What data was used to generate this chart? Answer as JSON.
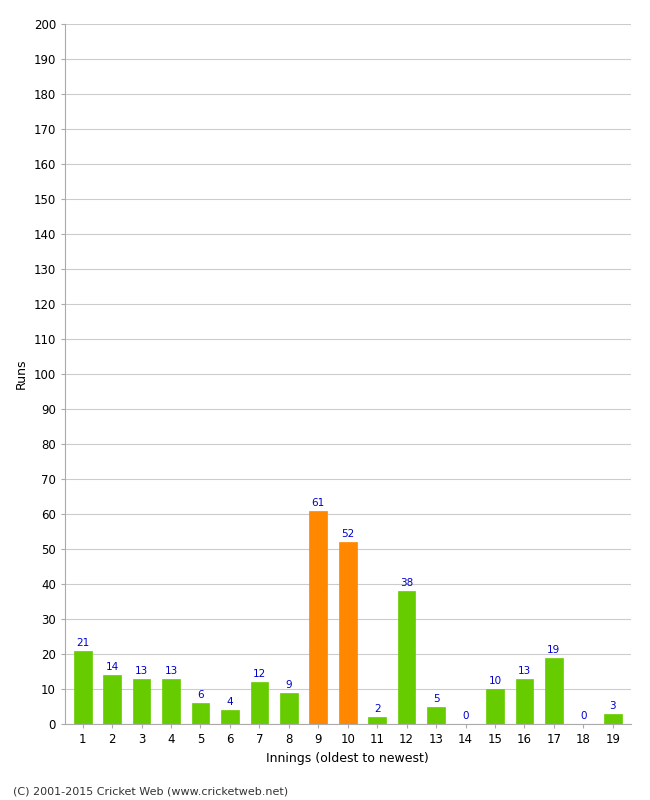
{
  "innings": [
    1,
    2,
    3,
    4,
    5,
    6,
    7,
    8,
    9,
    10,
    11,
    12,
    13,
    14,
    15,
    16,
    17,
    18,
    19
  ],
  "values": [
    21,
    14,
    13,
    13,
    6,
    4,
    12,
    9,
    61,
    52,
    2,
    38,
    5,
    0,
    10,
    13,
    19,
    0,
    3
  ],
  "colors": [
    "#66cc00",
    "#66cc00",
    "#66cc00",
    "#66cc00",
    "#66cc00",
    "#66cc00",
    "#66cc00",
    "#66cc00",
    "#ff8800",
    "#ff8800",
    "#66cc00",
    "#66cc00",
    "#66cc00",
    "#66cc00",
    "#66cc00",
    "#66cc00",
    "#66cc00",
    "#66cc00",
    "#66cc00"
  ],
  "xlabel": "Innings (oldest to newest)",
  "ylabel": "Runs",
  "ylim": [
    0,
    200
  ],
  "yticks": [
    0,
    10,
    20,
    30,
    40,
    50,
    60,
    70,
    80,
    90,
    100,
    110,
    120,
    130,
    140,
    150,
    160,
    170,
    180,
    190,
    200
  ],
  "label_color": "#0000cc",
  "bar_width": 0.6,
  "background_color": "#ffffff",
  "grid_color": "#cccccc",
  "footer": "(C) 2001-2015 Cricket Web (www.cricketweb.net)"
}
